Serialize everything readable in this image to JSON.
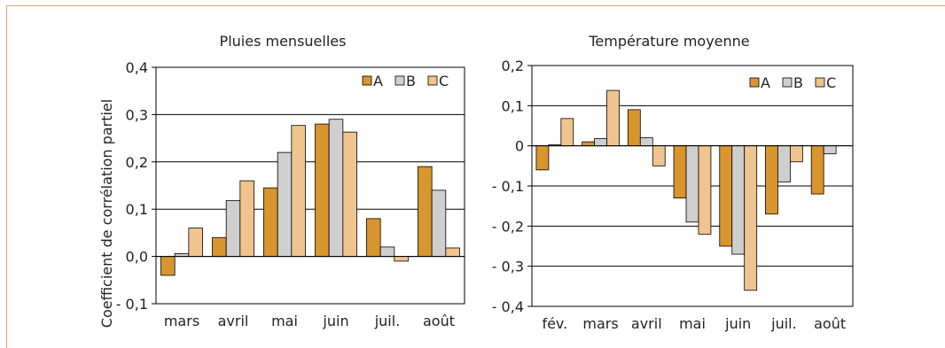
{
  "chart_data": [
    {
      "type": "bar",
      "title": "Pluies mensuelles",
      "ylabel": "Coefficient de corrélation partiel",
      "xlabel": "",
      "categories": [
        "mars",
        "avril",
        "mai",
        "juin",
        "juil.",
        "août"
      ],
      "ylim": [
        -0.1,
        0.4
      ],
      "yticks": [
        -0.1,
        0.0,
        0.1,
        0.2,
        0.3,
        0.4
      ],
      "ytick_labels": [
        "- 0,1",
        "0,0",
        "0,1",
        "0,2",
        "0,3",
        "0,4"
      ],
      "grid": true,
      "legend_position": "top-right",
      "series": [
        {
          "name": "A",
          "color": "#d9952e",
          "values": [
            -0.04,
            0.04,
            0.145,
            0.28,
            0.08,
            0.19
          ]
        },
        {
          "name": "B",
          "color": "#cfcfcf",
          "values": [
            0.006,
            0.118,
            0.22,
            0.29,
            0.02,
            0.14
          ]
        },
        {
          "name": "C",
          "color": "#f0c48e",
          "values": [
            0.06,
            0.16,
            0.277,
            0.263,
            -0.01,
            0.018
          ]
        }
      ]
    },
    {
      "type": "bar",
      "title": "Température moyenne",
      "ylabel": "",
      "xlabel": "",
      "categories": [
        "fév.",
        "mars",
        "avril",
        "mai",
        "juin",
        "juil.",
        "août"
      ],
      "ylim": [
        -0.4,
        0.2
      ],
      "yticks": [
        -0.4,
        -0.3,
        -0.2,
        -0.1,
        0.0,
        0.1,
        0.2
      ],
      "ytick_labels": [
        "- 0,4",
        "- 0,3",
        "- 0,2",
        "- 0,1",
        "0",
        "0,1",
        "0,2"
      ],
      "grid": true,
      "legend_position": "top-right",
      "series": [
        {
          "name": "A",
          "color": "#d9952e",
          "values": [
            -0.06,
            0.01,
            0.09,
            -0.13,
            -0.25,
            -0.17,
            -0.12
          ]
        },
        {
          "name": "B",
          "color": "#cfcfcf",
          "values": [
            0.003,
            0.018,
            0.02,
            -0.19,
            -0.27,
            -0.09,
            -0.02
          ]
        },
        {
          "name": "C",
          "color": "#f0c48e",
          "values": [
            0.068,
            0.138,
            -0.05,
            -0.22,
            -0.36,
            -0.04,
            0
          ]
        }
      ]
    }
  ]
}
